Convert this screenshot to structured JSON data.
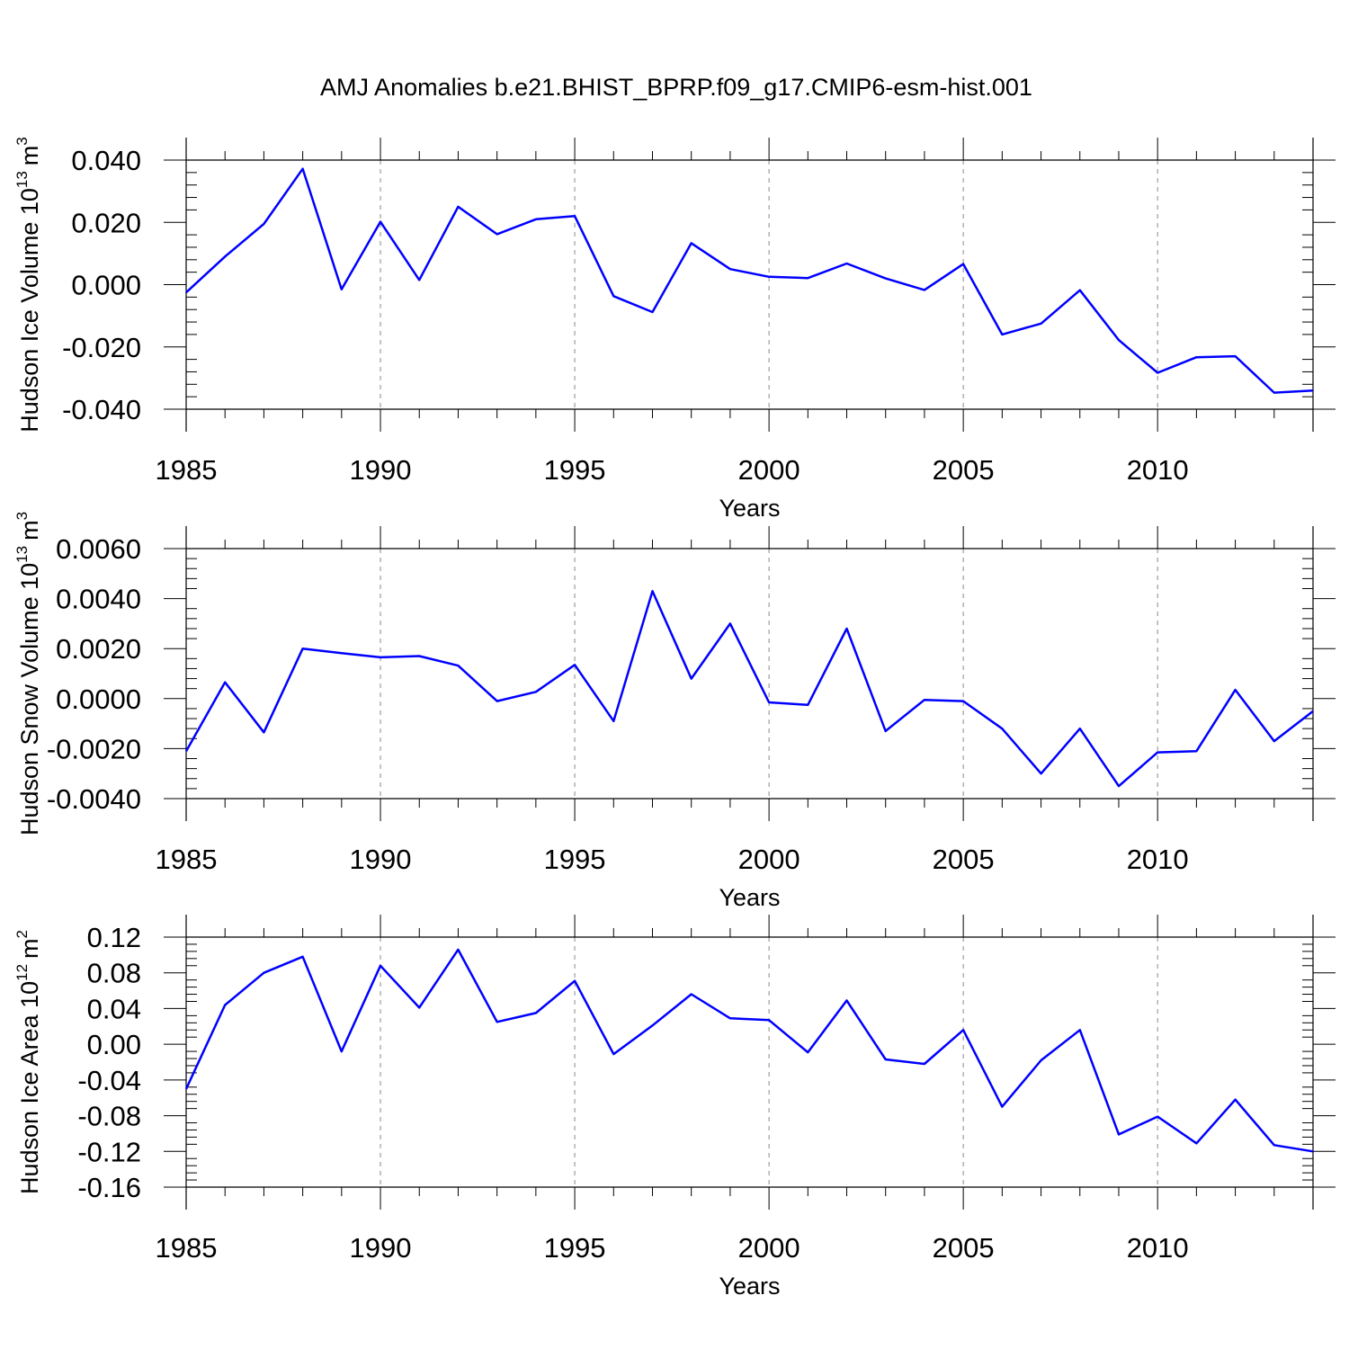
{
  "figure": {
    "title": "AMJ Anomalies b.e21.BHIST_BPRP.f09_g17.CMIP6-esm-hist.001"
  },
  "chart_data": [
    {
      "type": "line",
      "title": "",
      "ylabel": {
        "text": "Hudson Ice Volume 10",
        "exp": "13",
        "unit": "m",
        "unit_exp": "3"
      },
      "xlabel": "Years",
      "xlim": [
        1985,
        2014
      ],
      "ylim": [
        -0.04,
        0.04
      ],
      "xticks": [
        "1985",
        "1990",
        "1995",
        "2000",
        "2005",
        "2010"
      ],
      "yticks": [
        "0.040",
        "0.020",
        "0.000",
        "-0.020",
        "-0.040"
      ],
      "grid": "dashed vertical at major x ticks",
      "series": [
        {
          "color": "#0000ff",
          "x": [
            1985,
            1986,
            1987,
            1988,
            1989,
            1990,
            1991,
            1992,
            1993,
            1994,
            1995,
            1996,
            1997,
            1998,
            1999,
            2000,
            2001,
            2002,
            2003,
            2004,
            2005,
            2006,
            2007,
            2008,
            2009,
            2010,
            2011,
            2012,
            2013,
            2014
          ],
          "values": [
            -0.0025,
            0.009,
            0.0195,
            0.0372,
            -0.0015,
            0.0202,
            0.0015,
            0.025,
            0.0162,
            0.021,
            0.022,
            -0.0037,
            -0.0088,
            0.0133,
            0.005,
            0.0025,
            0.0021,
            0.0068,
            0.002,
            -0.0017,
            0.0066,
            -0.016,
            -0.0125,
            -0.0018,
            -0.0178,
            -0.0283,
            -0.0233,
            -0.023,
            -0.0347,
            -0.034
          ]
        }
      ]
    },
    {
      "type": "line",
      "title": "",
      "ylabel": {
        "text": "Hudson Snow Volume 10",
        "exp": "13",
        "unit": "m",
        "unit_exp": "3"
      },
      "xlabel": "Years",
      "xlim": [
        1985,
        2014
      ],
      "ylim": [
        -0.004,
        0.006
      ],
      "xticks": [
        "1985",
        "1990",
        "1995",
        "2000",
        "2005",
        "2010"
      ],
      "yticks": [
        "0.0060",
        "0.0040",
        "0.0020",
        "0.0000",
        "-0.0020",
        "-0.0040"
      ],
      "grid": "dashed vertical at major x ticks",
      "series": [
        {
          "color": "#0000ff",
          "x": [
            1985,
            1986,
            1987,
            1988,
            1989,
            1990,
            1991,
            1992,
            1993,
            1994,
            1995,
            1996,
            1997,
            1998,
            1999,
            2000,
            2001,
            2002,
            2003,
            2004,
            2005,
            2006,
            2007,
            2008,
            2009,
            2010,
            2011,
            2012,
            2013,
            2014
          ],
          "values": [
            -0.0021,
            0.00065,
            -0.00135,
            0.002,
            0.00182,
            0.00165,
            0.0017,
            0.00132,
            -0.0001,
            0.00027,
            0.00135,
            -0.0009,
            0.0043,
            0.0008,
            0.003,
            -0.00015,
            -0.00025,
            0.0028,
            -0.0013,
            -5e-05,
            -0.0001,
            -0.0012,
            -0.003,
            -0.0012,
            -0.0035,
            -0.00215,
            -0.0021,
            0.00035,
            -0.0017,
            -0.0005
          ]
        }
      ]
    },
    {
      "type": "line",
      "title": "",
      "ylabel": {
        "text": "Hudson Ice Area 10",
        "exp": "12",
        "unit": "m",
        "unit_exp": "2"
      },
      "xlabel": "Years",
      "xlim": [
        1985,
        2014
      ],
      "ylim": [
        -0.16,
        0.12
      ],
      "xticks": [
        "1985",
        "1990",
        "1995",
        "2000",
        "2005",
        "2010"
      ],
      "yticks": [
        "0.12",
        "0.08",
        "0.04",
        "0.00",
        "-0.04",
        "-0.08",
        "-0.12",
        "-0.16"
      ],
      "grid": "dashed vertical at major x ticks",
      "series": [
        {
          "color": "#0000ff",
          "x": [
            1985,
            1986,
            1987,
            1988,
            1989,
            1990,
            1991,
            1992,
            1993,
            1994,
            1995,
            1996,
            1997,
            1998,
            1999,
            2000,
            2001,
            2002,
            2003,
            2004,
            2005,
            2006,
            2007,
            2008,
            2009,
            2010,
            2011,
            2012,
            2013,
            2014
          ],
          "values": [
            -0.05,
            0.044,
            0.08,
            0.098,
            -0.008,
            0.088,
            0.041,
            0.106,
            0.025,
            0.035,
            0.071,
            -0.011,
            0.021,
            0.056,
            0.029,
            0.027,
            -0.009,
            0.049,
            -0.017,
            -0.022,
            0.016,
            -0.07,
            -0.018,
            0.016,
            -0.101,
            -0.081,
            -0.111,
            -0.062,
            -0.113,
            -0.12
          ]
        }
      ]
    }
  ]
}
